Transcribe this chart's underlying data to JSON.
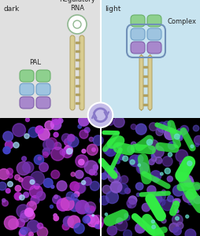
{
  "left_bg": "#e0e0e0",
  "right_bg": "#c8e4f0",
  "left_label": "dark",
  "right_label": "light",
  "pal_label": "PAL",
  "reg_rna_label": "Regulatory\nRNA",
  "complex_label": "Complex",
  "green_color": "#8ed08e",
  "green_edge": "#6ab06a",
  "blue_color": "#9ec4e0",
  "blue_edge": "#70a0c8",
  "purple_color": "#a888cc",
  "purple_edge": "#8060aa",
  "stem_color": "#d8cc90",
  "stem_edge": "#b0a060",
  "loop_fill": "#ffffff",
  "loop_edge": "#90b890",
  "aptamer_edge": "#7090b8",
  "arrow_circle_bg": "#c4bce8",
  "arrow_color": "#8878c8",
  "divider_color": "#ffffff",
  "label_fontsize": 6.5,
  "sub_fontsize": 6.0,
  "fig_width": 2.55,
  "fig_height": 3.0,
  "dpi": 100
}
